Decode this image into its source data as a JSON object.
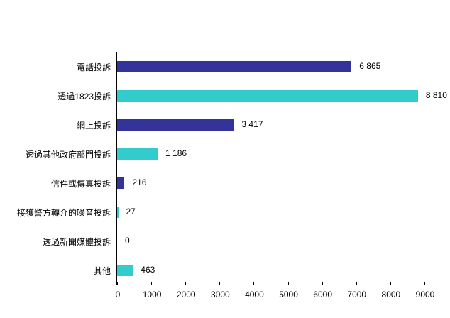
{
  "chart_data": {
    "type": "bar",
    "orientation": "horizontal",
    "title": "",
    "xlabel": "",
    "ylabel": "",
    "xlim": [
      0,
      9000
    ],
    "grid": false,
    "legend": null,
    "categories": [
      "電話投訴",
      "透過1823投訴",
      "網上投訴",
      "透過其他政府部門投訴",
      "信件或傳真投訴",
      "接獲警方轉介的噪音投訴",
      "透過新聞媒體投訴",
      "其他"
    ],
    "values": [
      6865,
      8810,
      3417,
      1186,
      216,
      27,
      0,
      463
    ],
    "value_labels": [
      "6 865",
      "8 810",
      "3 417",
      "1 186",
      "216",
      "27",
      "0",
      "463"
    ],
    "bar_colors": [
      "#333399",
      "#33CCCC",
      "#333399",
      "#33CCCC",
      "#333399",
      "#33CCCC",
      "#333399",
      "#33CCCC"
    ],
    "x_ticks": [
      "0",
      "1000",
      "2000",
      "3000",
      "4000",
      "5000",
      "6000",
      "7000",
      "8000",
      "9000"
    ]
  }
}
